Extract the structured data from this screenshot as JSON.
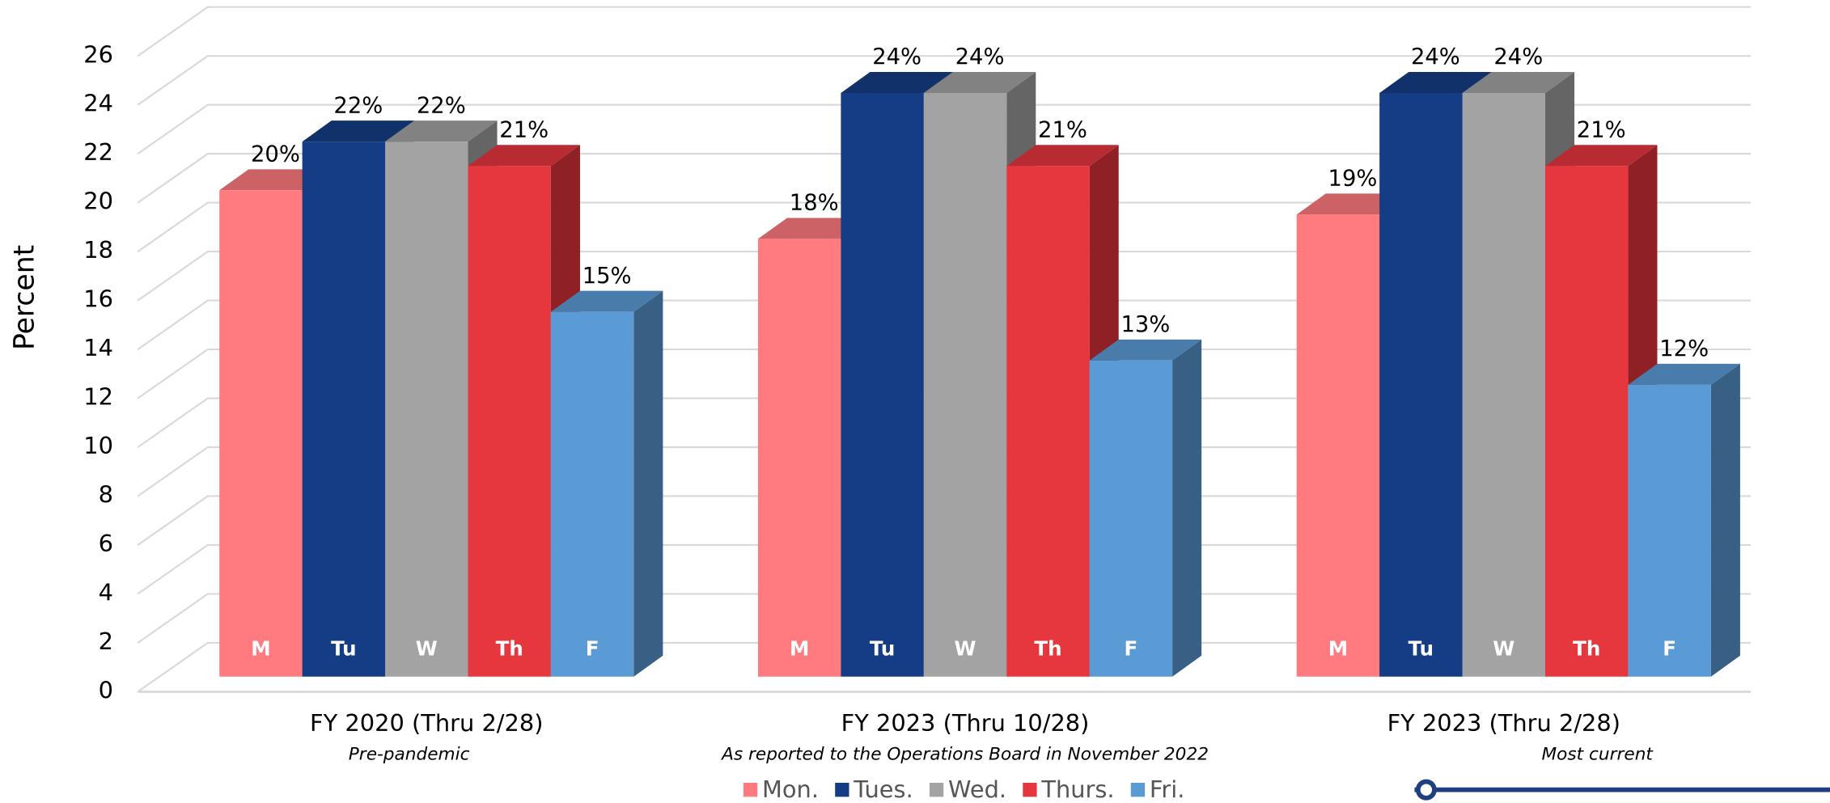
{
  "chart_data": {
    "type": "bar3d",
    "y_label": "Percent",
    "categories": [
      "FY 2020 (Thru 2/28)",
      "FY 2023 (Thru 10/28)",
      "FY 2023 (Thru 2/28)"
    ],
    "category_notes": [
      "Pre-pandemic",
      "As reported to the Operations Board in November 2022",
      "Most current"
    ],
    "series": [
      {
        "name": "Mon.",
        "label": "M",
        "color": "#ff7b80",
        "values": [
          20,
          18,
          19
        ],
        "value_labels": [
          "20%",
          "18%",
          "19%"
        ]
      },
      {
        "name": "Tues.",
        "label": "Tu",
        "color": "#153d85",
        "values": [
          22,
          24,
          24
        ],
        "value_labels": [
          "22%",
          "24%",
          "24%"
        ]
      },
      {
        "name": "Wed.",
        "label": "W",
        "color": "#a3a3a3",
        "values": [
          22,
          24,
          24
        ],
        "value_labels": [
          "22%",
          "24%",
          "24%"
        ]
      },
      {
        "name": "Thurs.",
        "label": "Th",
        "color": "#e6363e",
        "values": [
          21,
          21,
          21
        ],
        "value_labels": [
          "21%",
          "21%",
          "21%"
        ]
      },
      {
        "name": "Fri.",
        "label": "F",
        "color": "#5b9bd5",
        "values": [
          15,
          13,
          12
        ],
        "value_labels": [
          "15%",
          "13%",
          "12%"
        ]
      }
    ],
    "ylim": [
      0,
      26
    ],
    "yticks": [
      0,
      2,
      4,
      6,
      8,
      10,
      12,
      14,
      16,
      18,
      20,
      22,
      24,
      26
    ],
    "grid": true
  }
}
